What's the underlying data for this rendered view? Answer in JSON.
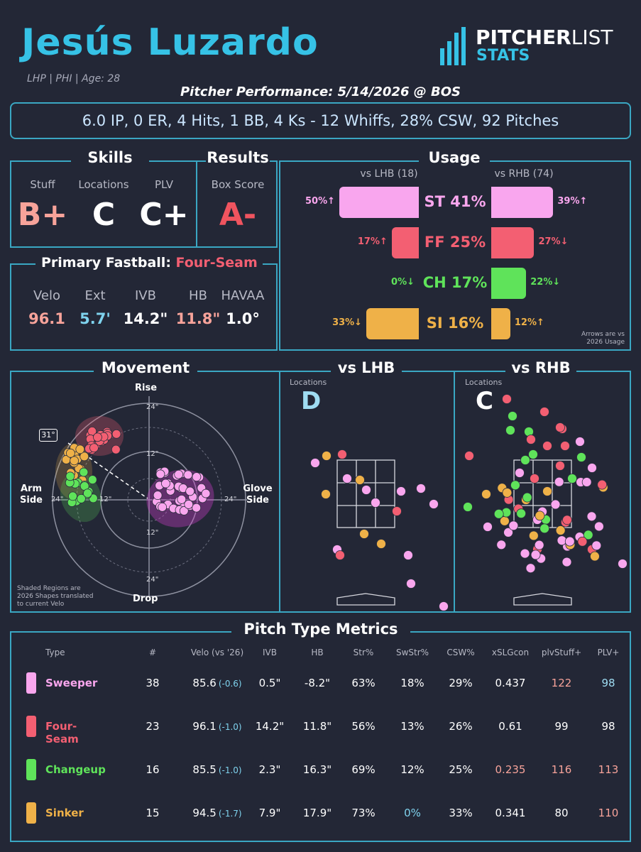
{
  "header": {
    "name": "Jesús Luzardo",
    "bio": "LHP | PHI | Age: 28",
    "logo_top_a": "PITCHER",
    "logo_top_b": "LIST",
    "logo_bottom": "STATS",
    "subtitle": "Pitcher Performance: 5/14/2026 @ BOS"
  },
  "summary": "6.0 IP, 0 ER, 4 Hits, 1 BB, 4 Ks - 12 Whiffs, 28% CSW, 92 Pitches",
  "skills": {
    "title": "Skills",
    "items": [
      {
        "label": "Stuff",
        "grade": "B+",
        "color": "#f7a39a"
      },
      {
        "label": "Locations",
        "grade": "C",
        "color": "#ffffff"
      },
      {
        "label": "PLV",
        "grade": "C+",
        "color": "#ffffff"
      }
    ]
  },
  "results": {
    "title": "Results",
    "label": "Box Score",
    "grade": "A-",
    "color": "#f0545f"
  },
  "fastball": {
    "title_prefix": "Primary Fastball:",
    "pitch": "Four-Seam",
    "metrics": [
      {
        "label": "Velo",
        "value": "96.1",
        "color": "#f7a39a"
      },
      {
        "label": "Ext",
        "value": "5.7'",
        "color": "#7fd3ee"
      },
      {
        "label": "IVB",
        "value": "14.2\"",
        "color": "#ffffff"
      },
      {
        "label": "HB",
        "value": "11.8\"",
        "color": "#f7a39a"
      },
      {
        "label": "HAVAA",
        "value": "1.0°",
        "color": "#ffffff"
      }
    ]
  },
  "usage": {
    "title": "Usage",
    "lhb_header": "vs LHB (18)",
    "rhb_header": "vs RHB (74)",
    "note_line1": "Arrows are vs",
    "note_line2": "2026 Usage",
    "rows": [
      {
        "label": "ST 41%",
        "color": "#f9a6ee",
        "lhb": 50,
        "lhb_text": "50%↑",
        "rhb": 39,
        "rhb_text": "39%↑"
      },
      {
        "label": "FF 25%",
        "color": "#f35f72",
        "lhb": 17,
        "lhb_text": "17%↑",
        "rhb": 27,
        "rhb_text": "27%↓"
      },
      {
        "label": "CH 17%",
        "color": "#5fe35a",
        "lhb": 0,
        "lhb_text": "0%↓",
        "rhb": 22,
        "rhb_text": "22%↓"
      },
      {
        "label": "SI 16%",
        "color": "#efb148",
        "lhb": 33,
        "lhb_text": "33%↓",
        "rhb": 12,
        "rhb_text": "12%↑"
      }
    ]
  },
  "movement": {
    "title": "Movement",
    "rise": "Rise",
    "drop": "Drop",
    "arm_side_1": "Arm",
    "arm_side_2": "Side",
    "glove_side_1": "Glove",
    "glove_side_2": "Side",
    "arm_angle": "31°",
    "ring_labels": {
      "top24": "24\"",
      "top12": "12\"",
      "bot12": "12\"",
      "bot24": "24\"",
      "left24": "24\"",
      "left12": "12\"",
      "right24": "24\""
    },
    "note_line1": "Shaded Regions are",
    "note_line2": "2026 Shapes translated",
    "note_line3": "to current Velo"
  },
  "vs_lhb": {
    "title": "vs LHB",
    "label": "Locations",
    "grade": "D",
    "grade_color": "#9fdcf2"
  },
  "vs_rhb": {
    "title": "vs RHB",
    "label": "Locations",
    "grade": "C",
    "grade_color": "#ffffff"
  },
  "table": {
    "title": "Pitch Type Metrics",
    "headers": [
      "Type",
      "#",
      "Velo (vs '26)",
      "IVB",
      "HB",
      "Str%",
      "SwStr%",
      "CSW%",
      "xSLGcon",
      "plvStuff+",
      "PLV+"
    ],
    "rows": [
      {
        "name": "Sweeper",
        "color": "#f9a6ee",
        "count": "38",
        "velo": "85.6",
        "velo_delta": "(-0.6)",
        "ivb": "0.5\"",
        "hb": "-8.2\"",
        "str": "63%",
        "swstr": "18%",
        "csw": "29%",
        "xslg": "0.437",
        "stuff": "122",
        "plv": "98",
        "swstr_color": "#ffffff",
        "xslg_color": "#ffffff",
        "stuff_color": "#f7a39a",
        "plv_color": "#9fdcf2"
      },
      {
        "name": "Four-Seam",
        "color": "#f35f72",
        "count": "23",
        "velo": "96.1",
        "velo_delta": "(-1.0)",
        "ivb": "14.2\"",
        "hb": "11.8\"",
        "str": "56%",
        "swstr": "13%",
        "csw": "26%",
        "xslg": "0.61",
        "stuff": "99",
        "plv": "98",
        "swstr_color": "#ffffff",
        "xslg_color": "#ffffff",
        "stuff_color": "#ffffff",
        "plv_color": "#ffffff"
      },
      {
        "name": "Changeup",
        "color": "#5fe35a",
        "count": "16",
        "velo": "85.5",
        "velo_delta": "(-1.0)",
        "ivb": "2.3\"",
        "hb": "16.3\"",
        "str": "69%",
        "swstr": "12%",
        "csw": "25%",
        "xslg": "0.235",
        "stuff": "116",
        "plv": "113",
        "swstr_color": "#ffffff",
        "xslg_color": "#f7a39a",
        "stuff_color": "#f7a39a",
        "plv_color": "#f7a39a"
      },
      {
        "name": "Sinker",
        "color": "#efb148",
        "count": "15",
        "velo": "94.5",
        "velo_delta": "(-1.7)",
        "ivb": "7.9\"",
        "hb": "17.9\"",
        "str": "73%",
        "swstr": "0%",
        "csw": "33%",
        "xslg": "0.341",
        "stuff": "80",
        "plv": "110",
        "swstr_color": "#7fd3ee",
        "xslg_color": "#ffffff",
        "stuff_color": "#ffffff",
        "plv_color": "#f7a39a"
      }
    ]
  }
}
